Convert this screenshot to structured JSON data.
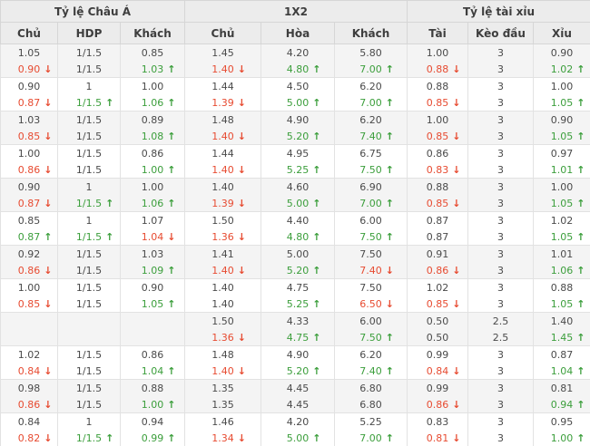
{
  "colors": {
    "up_green": "#3b9e3b",
    "down_red": "#e74b31",
    "header_bg": "#ececec",
    "band_bg": "#f4f4f4",
    "border": "#e2e2e2",
    "text": "#4a4a4a"
  },
  "icons": {
    "up": "↑",
    "down": "↓"
  },
  "table": {
    "group_headers": [
      {
        "label": "Tỷ lệ Châu Á",
        "colspan": 3
      },
      {
        "label": "1X2",
        "colspan": 3
      },
      {
        "label": "Tỷ lệ tài xỉu",
        "colspan": 3
      }
    ],
    "column_headers": [
      "Chủ",
      "HDP",
      "Khách",
      "Chủ",
      "Hòa",
      "Khách",
      "Tài",
      "Kèo đầu",
      "Xỉu"
    ],
    "groups": [
      {
        "rows": [
          [
            {
              "v": "1.05"
            },
            {
              "v": "1/1.5"
            },
            {
              "v": "0.85"
            },
            {
              "v": "1.45"
            },
            {
              "v": "4.20"
            },
            {
              "v": "5.80"
            },
            {
              "v": "1.00"
            },
            {
              "v": "3"
            },
            {
              "v": "0.90"
            }
          ],
          [
            {
              "v": "0.90",
              "d": "down"
            },
            {
              "v": "1/1.5"
            },
            {
              "v": "1.03",
              "d": "up"
            },
            {
              "v": "1.40",
              "d": "down"
            },
            {
              "v": "4.80",
              "d": "up"
            },
            {
              "v": "7.00",
              "d": "up"
            },
            {
              "v": "0.88",
              "d": "down"
            },
            {
              "v": "3"
            },
            {
              "v": "1.02",
              "d": "up"
            }
          ]
        ]
      },
      {
        "rows": [
          [
            {
              "v": "0.90"
            },
            {
              "v": "1"
            },
            {
              "v": "1.00"
            },
            {
              "v": "1.44"
            },
            {
              "v": "4.50"
            },
            {
              "v": "6.20"
            },
            {
              "v": "0.88"
            },
            {
              "v": "3"
            },
            {
              "v": "1.00"
            }
          ],
          [
            {
              "v": "0.87",
              "d": "down"
            },
            {
              "v": "1/1.5",
              "d": "up"
            },
            {
              "v": "1.06",
              "d": "up"
            },
            {
              "v": "1.39",
              "d": "down"
            },
            {
              "v": "5.00",
              "d": "up"
            },
            {
              "v": "7.00",
              "d": "up"
            },
            {
              "v": "0.85",
              "d": "down"
            },
            {
              "v": "3"
            },
            {
              "v": "1.05",
              "d": "up"
            }
          ]
        ]
      },
      {
        "rows": [
          [
            {
              "v": "1.03"
            },
            {
              "v": "1/1.5"
            },
            {
              "v": "0.89"
            },
            {
              "v": "1.48"
            },
            {
              "v": "4.90"
            },
            {
              "v": "6.20"
            },
            {
              "v": "1.00"
            },
            {
              "v": "3"
            },
            {
              "v": "0.90"
            }
          ],
          [
            {
              "v": "0.85",
              "d": "down"
            },
            {
              "v": "1/1.5"
            },
            {
              "v": "1.08",
              "d": "up"
            },
            {
              "v": "1.40",
              "d": "down"
            },
            {
              "v": "5.20",
              "d": "up"
            },
            {
              "v": "7.40",
              "d": "up"
            },
            {
              "v": "0.85",
              "d": "down"
            },
            {
              "v": "3"
            },
            {
              "v": "1.05",
              "d": "up"
            }
          ]
        ]
      },
      {
        "rows": [
          [
            {
              "v": "1.00"
            },
            {
              "v": "1/1.5"
            },
            {
              "v": "0.86"
            },
            {
              "v": "1.44"
            },
            {
              "v": "4.95"
            },
            {
              "v": "6.75"
            },
            {
              "v": "0.86"
            },
            {
              "v": "3"
            },
            {
              "v": "0.97"
            }
          ],
          [
            {
              "v": "0.86",
              "d": "down"
            },
            {
              "v": "1/1.5"
            },
            {
              "v": "1.00",
              "d": "up"
            },
            {
              "v": "1.40",
              "d": "down"
            },
            {
              "v": "5.25",
              "d": "up"
            },
            {
              "v": "7.50",
              "d": "up"
            },
            {
              "v": "0.83",
              "d": "down"
            },
            {
              "v": "3"
            },
            {
              "v": "1.01",
              "d": "up"
            }
          ]
        ]
      },
      {
        "rows": [
          [
            {
              "v": "0.90"
            },
            {
              "v": "1"
            },
            {
              "v": "1.00"
            },
            {
              "v": "1.40"
            },
            {
              "v": "4.60"
            },
            {
              "v": "6.90"
            },
            {
              "v": "0.88"
            },
            {
              "v": "3"
            },
            {
              "v": "1.00"
            }
          ],
          [
            {
              "v": "0.87",
              "d": "down"
            },
            {
              "v": "1/1.5",
              "d": "up"
            },
            {
              "v": "1.06",
              "d": "up"
            },
            {
              "v": "1.39",
              "d": "down"
            },
            {
              "v": "5.00",
              "d": "up"
            },
            {
              "v": "7.00",
              "d": "up"
            },
            {
              "v": "0.85",
              "d": "down"
            },
            {
              "v": "3"
            },
            {
              "v": "1.05",
              "d": "up"
            }
          ]
        ]
      },
      {
        "rows": [
          [
            {
              "v": "0.85"
            },
            {
              "v": "1"
            },
            {
              "v": "1.07"
            },
            {
              "v": "1.50"
            },
            {
              "v": "4.40"
            },
            {
              "v": "6.00"
            },
            {
              "v": "0.87"
            },
            {
              "v": "3"
            },
            {
              "v": "1.02"
            }
          ],
          [
            {
              "v": "0.87",
              "d": "up"
            },
            {
              "v": "1/1.5",
              "d": "up"
            },
            {
              "v": "1.04",
              "d": "down"
            },
            {
              "v": "1.36",
              "d": "down"
            },
            {
              "v": "4.80",
              "d": "up"
            },
            {
              "v": "7.50",
              "d": "up"
            },
            {
              "v": "0.87"
            },
            {
              "v": "3"
            },
            {
              "v": "1.05",
              "d": "up"
            }
          ]
        ]
      },
      {
        "rows": [
          [
            {
              "v": "0.92"
            },
            {
              "v": "1/1.5"
            },
            {
              "v": "1.03"
            },
            {
              "v": "1.41"
            },
            {
              "v": "5.00"
            },
            {
              "v": "7.50"
            },
            {
              "v": "0.91"
            },
            {
              "v": "3"
            },
            {
              "v": "1.01"
            }
          ],
          [
            {
              "v": "0.86",
              "d": "down"
            },
            {
              "v": "1/1.5"
            },
            {
              "v": "1.09",
              "d": "up"
            },
            {
              "v": "1.40",
              "d": "down"
            },
            {
              "v": "5.20",
              "d": "up"
            },
            {
              "v": "7.40",
              "d": "down"
            },
            {
              "v": "0.86",
              "d": "down"
            },
            {
              "v": "3"
            },
            {
              "v": "1.06",
              "d": "up"
            }
          ]
        ]
      },
      {
        "rows": [
          [
            {
              "v": "1.00"
            },
            {
              "v": "1/1.5"
            },
            {
              "v": "0.90"
            },
            {
              "v": "1.40"
            },
            {
              "v": "4.75"
            },
            {
              "v": "7.50"
            },
            {
              "v": "1.02"
            },
            {
              "v": "3"
            },
            {
              "v": "0.88"
            }
          ],
          [
            {
              "v": "0.85",
              "d": "down"
            },
            {
              "v": "1/1.5"
            },
            {
              "v": "1.05",
              "d": "up"
            },
            {
              "v": "1.40"
            },
            {
              "v": "5.25",
              "d": "up"
            },
            {
              "v": "6.50",
              "d": "down"
            },
            {
              "v": "0.85",
              "d": "down"
            },
            {
              "v": "3"
            },
            {
              "v": "1.05",
              "d": "up"
            }
          ]
        ]
      },
      {
        "rows": [
          [
            {
              "v": ""
            },
            {
              "v": ""
            },
            {
              "v": ""
            },
            {
              "v": "1.50"
            },
            {
              "v": "4.33"
            },
            {
              "v": "6.00"
            },
            {
              "v": "0.50"
            },
            {
              "v": "2.5"
            },
            {
              "v": "1.40"
            }
          ],
          [
            {
              "v": ""
            },
            {
              "v": ""
            },
            {
              "v": ""
            },
            {
              "v": "1.36",
              "d": "down"
            },
            {
              "v": "4.75",
              "d": "up"
            },
            {
              "v": "7.50",
              "d": "up"
            },
            {
              "v": "0.50"
            },
            {
              "v": "2.5"
            },
            {
              "v": "1.45",
              "d": "up"
            }
          ]
        ]
      },
      {
        "rows": [
          [
            {
              "v": "1.02"
            },
            {
              "v": "1/1.5"
            },
            {
              "v": "0.86"
            },
            {
              "v": "1.48"
            },
            {
              "v": "4.90"
            },
            {
              "v": "6.20"
            },
            {
              "v": "0.99"
            },
            {
              "v": "3"
            },
            {
              "v": "0.87"
            }
          ],
          [
            {
              "v": "0.84",
              "d": "down"
            },
            {
              "v": "1/1.5"
            },
            {
              "v": "1.04",
              "d": "up"
            },
            {
              "v": "1.40",
              "d": "down"
            },
            {
              "v": "5.20",
              "d": "up"
            },
            {
              "v": "7.40",
              "d": "up"
            },
            {
              "v": "0.84",
              "d": "down"
            },
            {
              "v": "3"
            },
            {
              "v": "1.04",
              "d": "up"
            }
          ]
        ]
      },
      {
        "rows": [
          [
            {
              "v": "0.98"
            },
            {
              "v": "1/1.5"
            },
            {
              "v": "0.88"
            },
            {
              "v": "1.35"
            },
            {
              "v": "4.45"
            },
            {
              "v": "6.80"
            },
            {
              "v": "0.99"
            },
            {
              "v": "3"
            },
            {
              "v": "0.81"
            }
          ],
          [
            {
              "v": "0.86",
              "d": "down"
            },
            {
              "v": "1/1.5"
            },
            {
              "v": "1.00",
              "d": "up"
            },
            {
              "v": "1.35"
            },
            {
              "v": "4.45"
            },
            {
              "v": "6.80"
            },
            {
              "v": "0.86",
              "d": "down"
            },
            {
              "v": "3"
            },
            {
              "v": "0.94",
              "d": "up"
            }
          ]
        ]
      },
      {
        "rows": [
          [
            {
              "v": "0.84"
            },
            {
              "v": "1"
            },
            {
              "v": "0.94"
            },
            {
              "v": "1.46"
            },
            {
              "v": "4.20"
            },
            {
              "v": "5.25"
            },
            {
              "v": "0.83"
            },
            {
              "v": "3"
            },
            {
              "v": "0.95"
            }
          ],
          [
            {
              "v": "0.82",
              "d": "down"
            },
            {
              "v": "1/1.5",
              "d": "up"
            },
            {
              "v": "0.99",
              "d": "up"
            },
            {
              "v": "1.34",
              "d": "down"
            },
            {
              "v": "5.00",
              "d": "up"
            },
            {
              "v": "7.00",
              "d": "up"
            },
            {
              "v": "0.81",
              "d": "down"
            },
            {
              "v": "3"
            },
            {
              "v": "1.00",
              "d": "up"
            }
          ]
        ]
      }
    ]
  }
}
